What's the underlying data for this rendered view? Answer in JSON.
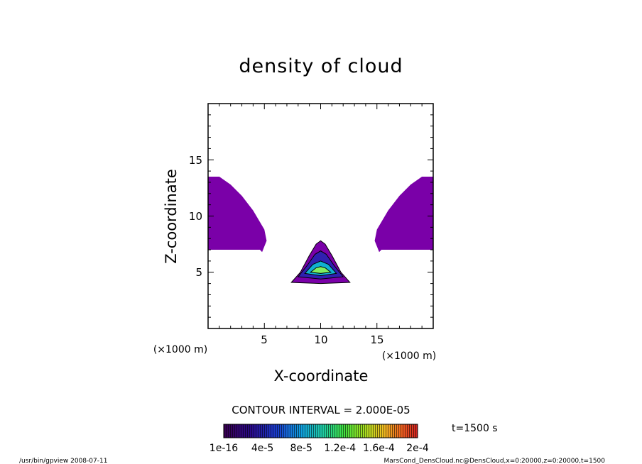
{
  "chart_data": {
    "type": "heatmap",
    "title": "density of cloud",
    "xlabel": "X-coordinate",
    "ylabel": "Z-coordinate",
    "x_units": "(×1000 m)",
    "z_units": "(×1000 m)",
    "xlim": [
      0,
      20
    ],
    "ylim": [
      0,
      20
    ],
    "x_ticks": [
      "5",
      "10",
      "15"
    ],
    "y_ticks": [
      "5",
      "10",
      "15"
    ],
    "contour_interval_label": "CONTOUR INTERVAL = 2.000E-05",
    "time_label": "t=1500 s",
    "colorbar": {
      "ticks": [
        "1e-16",
        "4e-5",
        "8e-5",
        "1.2e-4",
        "1.6e-4",
        "2e-4"
      ],
      "range": [
        0,
        0.0002
      ]
    },
    "regions": [
      {
        "name": "left-cloud",
        "level": 1e-05,
        "polygon": [
          [
            0,
            7
          ],
          [
            0,
            13.5
          ],
          [
            1,
            13.5
          ],
          [
            2,
            12.8
          ],
          [
            3,
            11.8
          ],
          [
            4,
            10.5
          ],
          [
            5,
            8.8
          ],
          [
            5.2,
            7.8
          ],
          [
            4.8,
            6.8
          ],
          [
            4.6,
            7
          ],
          [
            0,
            7
          ]
        ]
      },
      {
        "name": "right-cloud",
        "level": 1e-05,
        "polygon": [
          [
            20,
            7
          ],
          [
            20,
            13.5
          ],
          [
            19,
            13.5
          ],
          [
            18,
            12.8
          ],
          [
            17,
            11.8
          ],
          [
            16,
            10.5
          ],
          [
            15,
            8.8
          ],
          [
            14.8,
            7.8
          ],
          [
            15.2,
            6.8
          ],
          [
            15.4,
            7
          ],
          [
            20,
            7
          ]
        ]
      },
      {
        "name": "center-blob-outer",
        "level": 1e-05,
        "polygon": [
          [
            7.4,
            4.1
          ],
          [
            8.2,
            5
          ],
          [
            9,
            6.5
          ],
          [
            9.6,
            7.5
          ],
          [
            10,
            7.8
          ],
          [
            10.4,
            7.5
          ],
          [
            11,
            6.5
          ],
          [
            11.8,
            5
          ],
          [
            12.6,
            4.1
          ],
          [
            10,
            4.0
          ]
        ]
      },
      {
        "name": "center-blob-mid",
        "level": 5e-05,
        "polygon": [
          [
            8,
            4.6
          ],
          [
            8.8,
            5.6
          ],
          [
            9.5,
            6.6
          ],
          [
            10,
            6.9
          ],
          [
            10.5,
            6.6
          ],
          [
            11.2,
            5.6
          ],
          [
            12,
            4.6
          ],
          [
            10,
            4.4
          ]
        ]
      },
      {
        "name": "center-blob-inner",
        "level": 0.0001,
        "polygon": [
          [
            8.6,
            4.9
          ],
          [
            9.3,
            5.7
          ],
          [
            10,
            6.0
          ],
          [
            10.7,
            5.7
          ],
          [
            11.4,
            4.9
          ],
          [
            10,
            4.7
          ]
        ]
      },
      {
        "name": "center-blob-core",
        "level": 0.00015,
        "polygon": [
          [
            9.1,
            5.0
          ],
          [
            9.6,
            5.4
          ],
          [
            10,
            5.5
          ],
          [
            10.4,
            5.4
          ],
          [
            10.9,
            5.0
          ],
          [
            10,
            4.9
          ]
        ]
      }
    ]
  },
  "footer": {
    "left": "/usr/bin/gpview  2008-07-11",
    "right": "MarsCond_DensCloud.nc@DensCloud,x=0:20000,z=0:20000,t=1500"
  }
}
